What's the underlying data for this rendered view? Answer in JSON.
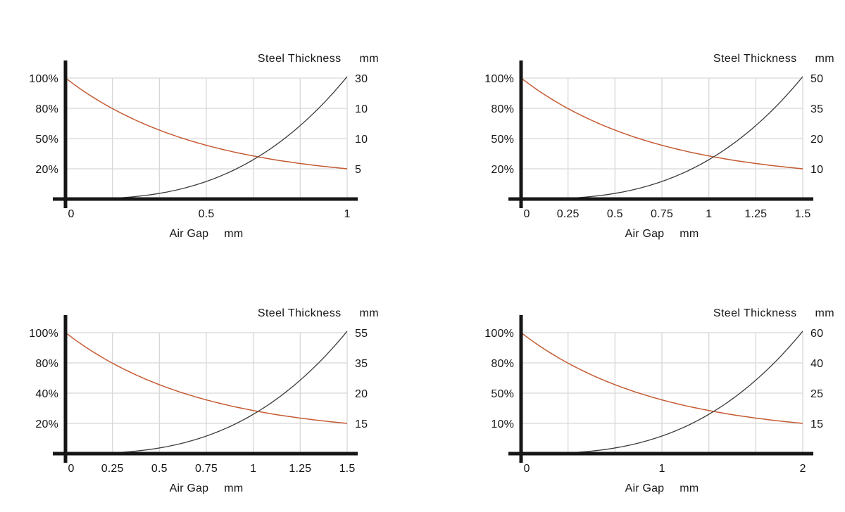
{
  "styles": {
    "background": "#ffffff",
    "percent_curve_color": "#c45a32",
    "thickness_curve_color": "#3c3c3c",
    "grid_color": "#d8d8d8",
    "axis_color": "#161616",
    "text_color": "#161616"
  },
  "chart_data": [
    {
      "name": "top-left",
      "type": "line",
      "title": "Steel Thickness",
      "title_unit": "mm",
      "xlabel": "Air Gap",
      "xlabel_unit": "mm",
      "grid": true,
      "legend": "none",
      "x_range": [
        0,
        1
      ],
      "x_grid_divisions": 6,
      "x_tick_values": [
        0,
        0.5,
        1
      ],
      "x_tick_labels": [
        "0",
        "0.5",
        "1"
      ],
      "left_axis_tick_labels": [
        "100%",
        "80%",
        "50%",
        "20%"
      ],
      "right_axis_tick_labels": [
        "30",
        "10",
        "10",
        "5"
      ],
      "series": [
        {
          "name": "coupling-percent-curve",
          "axis": "left",
          "trend": "exponential-decay",
          "start_value": "100%",
          "flattens_to_tick": "20%",
          "color": "#c45a32"
        },
        {
          "name": "steel-thickness-curve",
          "axis": "right",
          "trend": "accelerating-rise",
          "start_value": "0",
          "end_tick": "30",
          "color": "#3c3c3c"
        }
      ]
    },
    {
      "name": "top-right",
      "type": "line",
      "title": "Steel Thickness",
      "title_unit": "mm",
      "xlabel": "Air Gap",
      "xlabel_unit": "mm",
      "grid": true,
      "legend": "none",
      "x_range": [
        0,
        1.5
      ],
      "x_grid_divisions": 6,
      "x_tick_values": [
        0,
        0.25,
        0.5,
        0.75,
        1,
        1.25,
        1.5
      ],
      "x_tick_labels": [
        "0",
        "0.25",
        "0.5",
        "0.75",
        "1",
        "1.25",
        "1.5"
      ],
      "left_axis_tick_labels": [
        "100%",
        "80%",
        "50%",
        "20%"
      ],
      "right_axis_tick_labels": [
        "50",
        "35",
        "20",
        "10"
      ],
      "series": [
        {
          "name": "coupling-percent-curve",
          "axis": "left",
          "trend": "exponential-decay",
          "start_value": "100%",
          "flattens_to_tick": "20%",
          "color": "#c45a32"
        },
        {
          "name": "steel-thickness-curve",
          "axis": "right",
          "trend": "accelerating-rise",
          "start_value": "0",
          "end_tick": "50",
          "color": "#3c3c3c"
        }
      ]
    },
    {
      "name": "bottom-left",
      "type": "line",
      "title": "Steel Thickness",
      "title_unit": "mm",
      "xlabel": "Air Gap",
      "xlabel_unit": "mm",
      "grid": true,
      "legend": "none",
      "x_range": [
        0,
        1.5
      ],
      "x_grid_divisions": 6,
      "x_tick_values": [
        0,
        0.25,
        0.5,
        0.75,
        1,
        1.25,
        1.5
      ],
      "x_tick_labels": [
        "0",
        "0.25",
        "0.5",
        "0.75",
        "1",
        "1.25",
        "1.5"
      ],
      "left_axis_tick_labels": [
        "100%",
        "80%",
        "40%",
        "20%"
      ],
      "right_axis_tick_labels": [
        "55",
        "35",
        "20",
        "15"
      ],
      "series": [
        {
          "name": "coupling-percent-curve",
          "axis": "left",
          "trend": "exponential-decay",
          "start_value": "100%",
          "flattens_to_tick": "20%",
          "color": "#c45a32"
        },
        {
          "name": "steel-thickness-curve",
          "axis": "right",
          "trend": "accelerating-rise",
          "start_value": "0",
          "end_tick": "55",
          "color": "#3c3c3c"
        }
      ]
    },
    {
      "name": "bottom-right",
      "type": "line",
      "title": "Steel Thickness",
      "title_unit": "mm",
      "xlabel": "Air Gap",
      "xlabel_unit": "mm",
      "grid": true,
      "legend": "none",
      "x_range": [
        0,
        2
      ],
      "x_grid_divisions": 6,
      "x_tick_values": [
        0,
        1,
        2
      ],
      "x_tick_labels": [
        "0",
        "1",
        "2"
      ],
      "left_axis_tick_labels": [
        "100%",
        "80%",
        "50%",
        "10%"
      ],
      "right_axis_tick_labels": [
        "60",
        "40",
        "25",
        "15"
      ],
      "series": [
        {
          "name": "coupling-percent-curve",
          "axis": "left",
          "trend": "exponential-decay",
          "start_value": "100%",
          "flattens_to_tick": "10%",
          "color": "#c45a32"
        },
        {
          "name": "steel-thickness-curve",
          "axis": "right",
          "trend": "accelerating-rise",
          "start_value": "0",
          "end_tick": "60",
          "color": "#3c3c3c"
        }
      ]
    }
  ]
}
